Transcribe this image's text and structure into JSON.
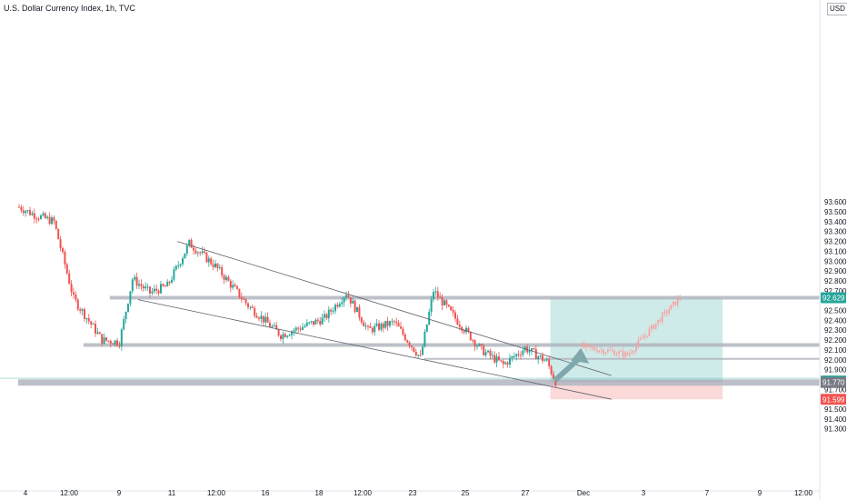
{
  "chart_title": "U.S. Dollar Currency Index, 1h, TVC",
  "price_axis": {
    "currency": "USD",
    "tick_labels": [
      "93.600",
      "93.500",
      "93.400",
      "93.300",
      "93.200",
      "93.100",
      "93.000",
      "92.900",
      "92.800",
      "92.700",
      "92.500",
      "92.400",
      "92.300",
      "92.200",
      "92.100",
      "92.000",
      "91.900",
      "91.700",
      "91.500",
      "91.400",
      "91.300"
    ]
  },
  "price_tags": [
    {
      "label": "92.629",
      "price": 92.629,
      "color": "#26a69a"
    },
    {
      "label": "91.785",
      "price": 91.785,
      "color": "#26a69a"
    },
    {
      "label": "91.770",
      "price": 91.77,
      "color": "#787b86"
    },
    {
      "label": "91.599",
      "price": 91.599,
      "color": "#ef5350"
    }
  ],
  "time_axis": {
    "labels": [
      "4",
      "12:00",
      "9",
      "11",
      "12:00",
      "16",
      "18",
      "12:00",
      "23",
      "25",
      "27",
      "Dec",
      "3",
      "7",
      "9",
      "12:00"
    ]
  },
  "chart_data": {
    "type": "candlestick",
    "title": "U.S. Dollar Currency Index, 1h, TVC",
    "xlabel": "",
    "ylabel": "",
    "ylim": [
      91.25,
      93.7
    ],
    "grid": false,
    "colors": {
      "up": "#26a69a",
      "down": "#ef5350",
      "projection": "#f7a1a1"
    },
    "anchors": [
      {
        "t": 0,
        "p": 93.55
      },
      {
        "t": 6,
        "p": 93.48
      },
      {
        "t": 16,
        "p": 93.4
      },
      {
        "t": 25,
        "p": 92.62
      },
      {
        "t": 38,
        "p": 92.2
      },
      {
        "t": 46,
        "p": 92.18
      },
      {
        "t": 52,
        "p": 92.82
      },
      {
        "t": 60,
        "p": 92.68
      },
      {
        "t": 68,
        "p": 92.75
      },
      {
        "t": 78,
        "p": 93.18
      },
      {
        "t": 90,
        "p": 92.95
      },
      {
        "t": 105,
        "p": 92.55
      },
      {
        "t": 120,
        "p": 92.25
      },
      {
        "t": 140,
        "p": 92.42
      },
      {
        "t": 150,
        "p": 92.68
      },
      {
        "t": 160,
        "p": 92.3
      },
      {
        "t": 172,
        "p": 92.38
      },
      {
        "t": 184,
        "p": 92.02
      },
      {
        "t": 190,
        "p": 92.7
      },
      {
        "t": 200,
        "p": 92.42
      },
      {
        "t": 212,
        "p": 92.1
      },
      {
        "t": 222,
        "p": 91.95
      },
      {
        "t": 232,
        "p": 92.12
      },
      {
        "t": 242,
        "p": 91.98
      },
      {
        "t": 246,
        "p": 91.78
      }
    ],
    "projection": [
      {
        "t": 258,
        "p": 92.13
      },
      {
        "t": 270,
        "p": 92.09
      },
      {
        "t": 279,
        "p": 92.05
      },
      {
        "t": 290,
        "p": 92.32
      },
      {
        "t": 303,
        "p": 92.63
      }
    ],
    "wedge_lines": [
      [
        {
          "t": 73,
          "p": 93.2
        },
        {
          "t": 272,
          "p": 91.84
        }
      ],
      [
        {
          "t": 55,
          "p": 92.61
        },
        {
          "t": 272,
          "p": 91.6
        }
      ]
    ],
    "horizontal_levels": [
      {
        "p": 92.629,
        "from_t": 42
      },
      {
        "p": 92.15,
        "from_t": 30
      },
      {
        "p": 92.01,
        "from_t": 186
      },
      {
        "p": 91.77,
        "from_t": 0
      }
    ],
    "position": {
      "type": "long",
      "entry": 91.785,
      "target": 92.629,
      "stop": 91.599,
      "from_t": 244,
      "to_t": 323
    },
    "arrow": [
      {
        "t": 246,
        "p": 91.79
      },
      {
        "t": 258,
        "p": 92.12
      }
    ]
  }
}
